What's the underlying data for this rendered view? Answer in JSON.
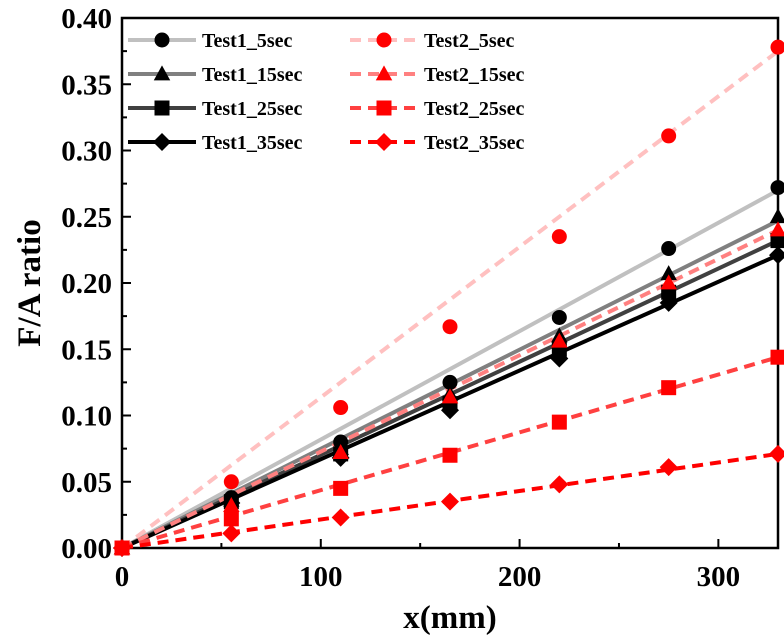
{
  "chart_data": {
    "type": "scatter",
    "title": "",
    "xlabel": "x(mm)",
    "ylabel": "F/A ratio",
    "xlim": [
      0,
      330
    ],
    "ylim": [
      0,
      0.4
    ],
    "xticks": [
      0,
      100,
      200,
      300
    ],
    "xtick_labels": [
      "0",
      "100",
      "200",
      "300"
    ],
    "yticks": [
      0,
      0.05,
      0.1,
      0.15,
      0.2,
      0.25,
      0.3,
      0.35,
      0.4
    ],
    "ytick_labels": [
      "0.00",
      "0.05",
      "0.10",
      "0.15",
      "0.20",
      "0.25",
      "0.30",
      "0.35",
      "0.40"
    ],
    "grid": false,
    "legend_position": "top-left",
    "series": [
      {
        "name": "Test1_5sec",
        "marker": "circle",
        "color": "#000000",
        "line_color": "#c0c0c0",
        "dash": "solid",
        "x": [
          0,
          55,
          110,
          165,
          220,
          275,
          330
        ],
        "y": [
          0,
          0.038,
          0.08,
          0.125,
          0.174,
          0.226,
          0.272
        ],
        "fit_end": 0.27
      },
      {
        "name": "Test1_15sec",
        "marker": "triangle",
        "color": "#000000",
        "line_color": "#808080",
        "dash": "solid",
        "x": [
          0,
          55,
          110,
          165,
          220,
          275,
          330
        ],
        "y": [
          0,
          0.036,
          0.075,
          0.116,
          0.16,
          0.207,
          0.25
        ],
        "fit_end": 0.247
      },
      {
        "name": "Test1_25sec",
        "marker": "square",
        "color": "#000000",
        "line_color": "#404040",
        "dash": "solid",
        "x": [
          0,
          55,
          110,
          165,
          220,
          275,
          330
        ],
        "y": [
          0,
          0.035,
          0.071,
          0.109,
          0.15,
          0.193,
          0.232
        ],
        "fit_end": 0.232
      },
      {
        "name": "Test1_35sec",
        "marker": "diamond",
        "color": "#000000",
        "line_color": "#000000",
        "dash": "solid",
        "x": [
          0,
          55,
          110,
          165,
          220,
          275,
          330
        ],
        "y": [
          0,
          0.034,
          0.068,
          0.104,
          0.143,
          0.185,
          0.221
        ],
        "fit_end": 0.221
      },
      {
        "name": "Test2_5sec",
        "marker": "circle",
        "color": "#ff0000",
        "line_color": "#ffc0c0",
        "dash": "dashed",
        "x": [
          0,
          55,
          110,
          165,
          220,
          275,
          330
        ],
        "y": [
          0,
          0.05,
          0.106,
          0.167,
          0.235,
          0.311,
          0.378
        ],
        "fit_end": 0.375
      },
      {
        "name": "Test2_15sec",
        "marker": "triangle",
        "color": "#ff0000",
        "line_color": "#ff8080",
        "dash": "dashed",
        "x": [
          0,
          55,
          110,
          165,
          220,
          275,
          330
        ],
        "y": [
          0,
          0.032,
          0.072,
          0.114,
          0.156,
          0.2,
          0.24
        ],
        "fit_end": 0.24
      },
      {
        "name": "Test2_25sec",
        "marker": "square",
        "color": "#ff0000",
        "line_color": "#ff4040",
        "dash": "dashed",
        "x": [
          0,
          55,
          110,
          165,
          220,
          275,
          330
        ],
        "y": [
          0,
          0.022,
          0.045,
          0.07,
          0.095,
          0.121,
          0.144
        ],
        "fit_end": 0.144
      },
      {
        "name": "Test2_35sec",
        "marker": "diamond",
        "color": "#ff0000",
        "line_color": "#ff0000",
        "dash": "dashed",
        "x": [
          0,
          55,
          110,
          165,
          220,
          275,
          330
        ],
        "y": [
          0,
          0.011,
          0.023,
          0.035,
          0.048,
          0.061,
          0.071
        ],
        "fit_end": 0.071
      }
    ]
  }
}
